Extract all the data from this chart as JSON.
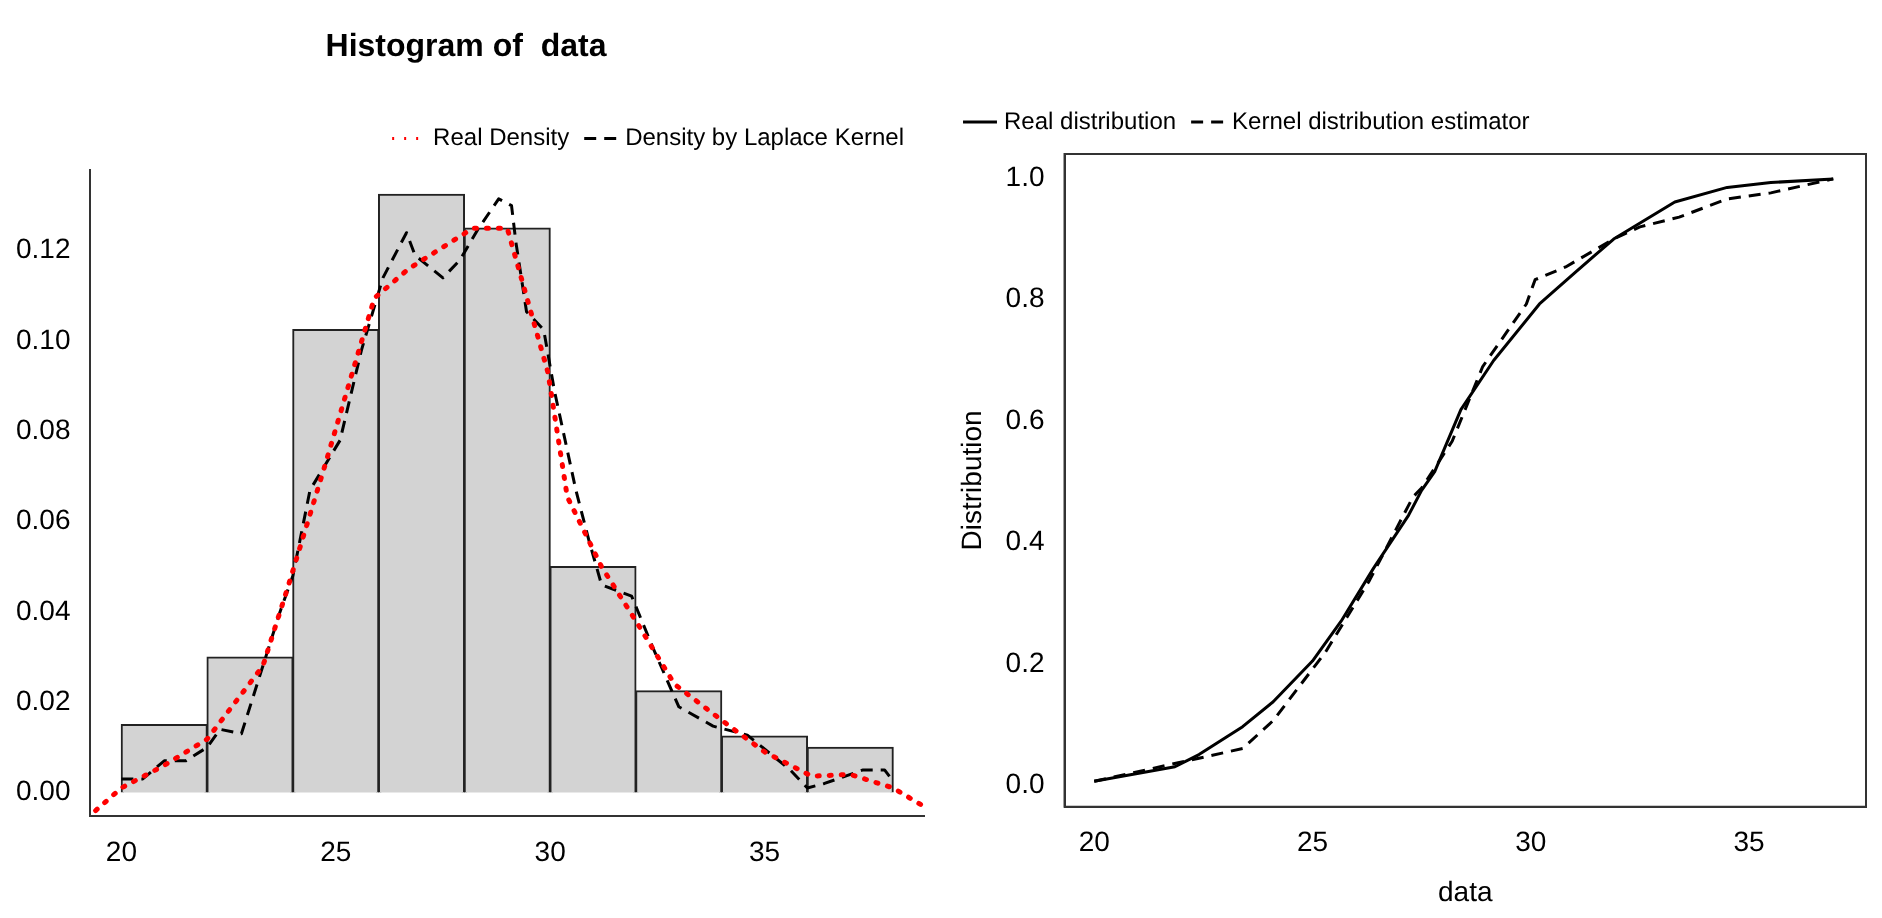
{
  "chart_data": [
    {
      "type": "histogram",
      "title": "Histogram of  data",
      "bins": [
        20,
        22,
        24,
        26,
        28,
        30,
        32,
        34,
        36,
        38
      ],
      "values": [
        0.015,
        0.03,
        0.1025,
        0.1325,
        0.125,
        0.05,
        0.0225,
        0.0125,
        0.01
      ],
      "color": "#d3d3d3",
      "series": [
        {
          "type": "line",
          "name": "Real Density",
          "color": "#ff0000",
          "line_style": "dotted",
          "x": [
            19.4,
            20,
            21,
            22,
            23.3,
            23.9,
            24.75,
            25.9,
            26.7,
            28.2,
            29,
            29.95,
            30.4,
            31.2,
            32,
            32.9,
            34,
            35,
            36.1,
            37,
            38,
            38.7
          ],
          "values": [
            -0.004,
            0.001,
            0.006,
            0.0118,
            0.028,
            0.046,
            0.0725,
            0.1095,
            0.116,
            0.125,
            0.125,
            0.093,
            0.0655,
            0.05,
            0.038,
            0.024,
            0.016,
            0.009,
            0.0036,
            0.004,
            0.001,
            -0.003
          ]
        },
        {
          "type": "line",
          "name": "Density by Laplace Kernel",
          "color": "#000000",
          "line_style": "dashed",
          "x": [
            20,
            20.5,
            21,
            21.5,
            22,
            22.3,
            22.8,
            23.3,
            23.7,
            24,
            24.4,
            25.1,
            25.6,
            26.1,
            26.65,
            26.85,
            27.5,
            27.9,
            28.3,
            28.8,
            29.1,
            29.2,
            29.45,
            29.85,
            30.1,
            30.6,
            30.9,
            31.2,
            31.9,
            32.4,
            33,
            33.8,
            34.6,
            35.6,
            36,
            36.4,
            37.3,
            37.8,
            38
          ],
          "values": [
            0.003,
            0.003,
            0.007,
            0.007,
            0.01,
            0.014,
            0.013,
            0.028,
            0.04,
            0.048,
            0.067,
            0.078,
            0.098,
            0.114,
            0.124,
            0.119,
            0.114,
            0.118,
            0.1245,
            0.1315,
            0.13,
            0.122,
            0.1065,
            0.1025,
            0.089,
            0.067,
            0.056,
            0.046,
            0.0435,
            0.032,
            0.019,
            0.0147,
            0.0127,
            0.005,
            0.001,
            0.002,
            0.005,
            0.005,
            0.0025
          ]
        }
      ],
      "xlim": [
        19.28,
        38.72
      ],
      "ylim": [
        -0.0053,
        0.1378
      ],
      "xticks": [
        20,
        25,
        30,
        35
      ],
      "yticks": [
        {
          "value": 0,
          "label": "0.00"
        },
        {
          "value": 0.02,
          "label": "0.02"
        },
        {
          "value": 0.04,
          "label": "0.04"
        },
        {
          "value": 0.06,
          "label": "0.06"
        },
        {
          "value": 0.08,
          "label": "0.08"
        },
        {
          "value": 0.1,
          "label": "0.10"
        },
        {
          "value": 0.12,
          "label": "0.12"
        }
      ],
      "legend": "top right"
    },
    {
      "type": "line",
      "xlabel": "data",
      "ylabel": "Distribution",
      "series": [
        {
          "name": "Real distribution",
          "color": "#000000",
          "line_style": "solid",
          "x": [
            20,
            21.85,
            22.4,
            23.4,
            24.1,
            25,
            25.66,
            26.4,
            27.2,
            27.5,
            27.8,
            28.4,
            29.15,
            30.2,
            31,
            31.9,
            33.3,
            34.5,
            35.5,
            36.93
          ],
          "values": [
            0.007,
            0.031,
            0.051,
            0.097,
            0.138,
            0.205,
            0.271,
            0.358,
            0.445,
            0.486,
            0.517,
            0.619,
            0.7,
            0.793,
            0.844,
            0.9,
            0.961,
            0.985,
            0.993,
            0.999
          ]
        },
        {
          "name": "Kernel distribution estimator",
          "color": "#000000",
          "line_style": "dashed",
          "x": [
            20,
            22.4,
            23.4,
            24.1,
            25.3,
            26.3,
            27.3,
            27.5,
            28.2,
            28.9,
            29.9,
            30.1,
            30.8,
            31.9,
            32.5,
            33.4,
            34.5,
            35.5,
            36.93
          ],
          "values": [
            0.007,
            0.045,
            0.061,
            0.107,
            0.22,
            0.337,
            0.475,
            0.49,
            0.567,
            0.69,
            0.793,
            0.833,
            0.854,
            0.9,
            0.92,
            0.936,
            0.966,
            0.976,
            0.999
          ]
        }
      ],
      "xlim": [
        19.32,
        37.68
      ],
      "ylim": [
        -0.035,
        1.04
      ],
      "xticks": [
        20,
        25,
        30,
        35
      ],
      "yticks": [
        {
          "value": 0,
          "label": "0.0"
        },
        {
          "value": 0.2,
          "label": "0.2"
        },
        {
          "value": 0.4,
          "label": "0.4"
        },
        {
          "value": 0.6,
          "label": "0.6"
        },
        {
          "value": 0.8,
          "label": "0.8"
        },
        {
          "value": 1,
          "label": "1.0"
        }
      ],
      "legend": "top left"
    }
  ]
}
